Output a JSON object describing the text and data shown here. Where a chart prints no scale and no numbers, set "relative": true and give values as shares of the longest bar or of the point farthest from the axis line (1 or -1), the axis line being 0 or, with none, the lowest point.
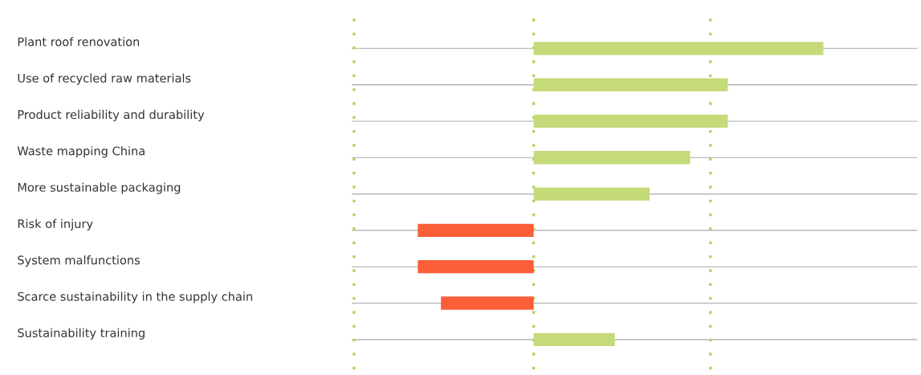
{
  "chart_data": {
    "type": "bar",
    "orientation": "horizontal",
    "relative": true,
    "categories": [
      "Plant roof renovation",
      "Use of recycled raw materials",
      "Product reliability and durability",
      "Waste mapping China",
      "More sustainable packaging",
      "Risk of injury",
      "System malfunctions",
      "Scarce sustainability in the supply chain",
      "Sustainability training"
    ],
    "values": [
      1,
      0.67,
      0.67,
      0.54,
      0.4,
      -0.4,
      -0.4,
      -0.32,
      0.28
    ],
    "colors": [
      "#c5da78",
      "#c5da78",
      "#c5da78",
      "#c5da78",
      "#c5da78",
      "#fa5f38",
      "#fa5f38",
      "#fa5f38",
      "#c5da78"
    ],
    "grid": "y",
    "ref_lines": [
      {
        "axis": "x",
        "value": -0.62,
        "label": null,
        "color": "#b5d15a",
        "line_style": "dotted"
      },
      {
        "axis": "x",
        "value": 0,
        "label": null,
        "color": "#b5d15a",
        "line_style": "dotted"
      },
      {
        "axis": "x",
        "value": 0.61,
        "label": null,
        "color": "#b5d15a",
        "line_style": "dotted"
      }
    ]
  }
}
